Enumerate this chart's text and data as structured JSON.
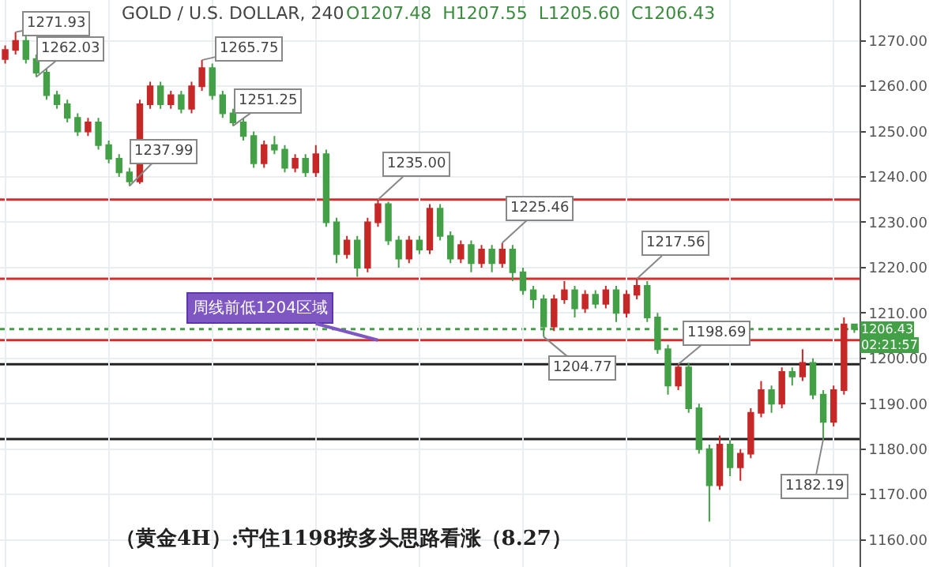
{
  "chart_data": {
    "type": "candlestick",
    "categories": [
      null,
      null,
      null,
      null,
      null,
      null,
      null,
      null,
      null,
      null,
      null,
      null,
      null,
      null,
      null,
      null,
      null,
      null,
      null,
      null,
      null,
      null,
      null,
      null,
      null,
      null,
      null,
      null,
      null,
      null,
      null,
      null,
      null,
      null,
      null,
      null,
      null,
      null,
      null,
      null,
      null,
      null,
      null,
      null,
      null,
      null,
      null,
      null,
      null,
      null,
      null,
      null,
      null,
      null,
      null,
      null,
      null,
      null,
      null,
      null,
      null,
      null,
      null,
      null,
      null,
      null,
      null,
      null,
      null,
      null,
      null,
      null,
      null,
      null,
      null,
      null,
      null,
      null,
      null,
      null,
      null,
      null,
      null
    ],
    "ohlc": [
      [
        1266,
        1269,
        1265,
        1268
      ],
      [
        1268,
        1271.93,
        1267,
        1270
      ],
      [
        1270,
        1271,
        1265,
        1266
      ],
      [
        1266,
        1267,
        1262.03,
        1263
      ],
      [
        1263,
        1264,
        1257,
        1258
      ],
      [
        1258,
        1259,
        1255,
        1256
      ],
      [
        1256,
        1257,
        1252,
        1253
      ],
      [
        1253,
        1254,
        1249,
        1250
      ],
      [
        1250,
        1253,
        1249,
        1252
      ],
      [
        1252,
        1253,
        1246,
        1247
      ],
      [
        1247,
        1248,
        1243,
        1244
      ],
      [
        1244,
        1245,
        1240,
        1241
      ],
      [
        1241,
        1242,
        1237.99,
        1239
      ],
      [
        1239,
        1257,
        1238.5,
        1256
      ],
      [
        1256,
        1261,
        1255,
        1260
      ],
      [
        1260,
        1261,
        1255,
        1256
      ],
      [
        1256,
        1259,
        1255,
        1258
      ],
      [
        1258,
        1259,
        1254,
        1255
      ],
      [
        1255,
        1261,
        1254,
        1260
      ],
      [
        1260,
        1265.75,
        1259,
        1264
      ],
      [
        1264,
        1265,
        1257,
        1258
      ],
      [
        1258,
        1259,
        1253,
        1254
      ],
      [
        1254,
        1255,
        1251.25,
        1252
      ],
      [
        1252,
        1253,
        1248,
        1249
      ],
      [
        1249,
        1250,
        1242,
        1243
      ],
      [
        1243,
        1248,
        1242,
        1247
      ],
      [
        1247,
        1249,
        1245,
        1246
      ],
      [
        1246,
        1247,
        1241,
        1242
      ],
      [
        1242,
        1245,
        1241,
        1244
      ],
      [
        1244,
        1245,
        1240,
        1241
      ],
      [
        1241,
        1247,
        1240,
        1245
      ],
      [
        1245,
        1246,
        1229,
        1230
      ],
      [
        1230,
        1231,
        1221,
        1223
      ],
      [
        1223,
        1227,
        1222,
        1226
      ],
      [
        1226,
        1227,
        1218,
        1220
      ],
      [
        1220,
        1231,
        1219,
        1230
      ],
      [
        1230,
        1235,
        1229,
        1234
      ],
      [
        1234,
        1234.5,
        1225,
        1226
      ],
      [
        1226,
        1227,
        1220,
        1222
      ],
      [
        1222,
        1227,
        1221,
        1226
      ],
      [
        1226,
        1227,
        1223,
        1224
      ],
      [
        1224,
        1234,
        1223,
        1233
      ],
      [
        1233,
        1234,
        1226,
        1227
      ],
      [
        1227,
        1228,
        1221,
        1222
      ],
      [
        1222,
        1226,
        1221,
        1225
      ],
      [
        1225,
        1226,
        1219,
        1221
      ],
      [
        1221,
        1225,
        1220,
        1224
      ],
      [
        1224,
        1225,
        1219,
        1221
      ],
      [
        1221,
        1225.46,
        1220,
        1224
      ],
      [
        1224,
        1225,
        1217,
        1219
      ],
      [
        1219,
        1220,
        1214,
        1215
      ],
      [
        1215,
        1216,
        1211,
        1213
      ],
      [
        1213,
        1214,
        1204.77,
        1207
      ],
      [
        1207,
        1214,
        1206,
        1213
      ],
      [
        1213,
        1217,
        1212,
        1215
      ],
      [
        1215,
        1216,
        1209,
        1211
      ],
      [
        1211,
        1215,
        1210,
        1214
      ],
      [
        1214,
        1215,
        1211,
        1212
      ],
      [
        1212,
        1216,
        1211,
        1215
      ],
      [
        1215,
        1216,
        1208,
        1210
      ],
      [
        1210,
        1215,
        1209,
        1214
      ],
      [
        1214,
        1217.56,
        1213,
        1216
      ],
      [
        1216,
        1217,
        1208,
        1209
      ],
      [
        1209,
        1210,
        1201,
        1202
      ],
      [
        1202,
        1203,
        1192,
        1194
      ],
      [
        1194,
        1198.69,
        1193,
        1198
      ],
      [
        1198,
        1199,
        1188,
        1189
      ],
      [
        1189,
        1190,
        1179,
        1180
      ],
      [
        1180,
        1181,
        1164,
        1172
      ],
      [
        1172,
        1183,
        1171,
        1181
      ],
      [
        1181,
        1182,
        1174,
        1176
      ],
      [
        1176,
        1180,
        1173,
        1179
      ],
      [
        1179,
        1189,
        1178,
        1188
      ],
      [
        1188,
        1195,
        1187,
        1193
      ],
      [
        1193,
        1194,
        1188,
        1190
      ],
      [
        1190,
        1198,
        1189,
        1197
      ],
      [
        1197,
        1198,
        1194,
        1196
      ],
      [
        1196,
        1202,
        1195,
        1199
      ],
      [
        1199,
        1200,
        1191,
        1192
      ],
      [
        1192,
        1193,
        1182.19,
        1186
      ],
      [
        1186,
        1194,
        1185,
        1193
      ],
      [
        1193,
        1209,
        1192,
        1207.48
      ],
      [
        1207.48,
        1207.55,
        1205.6,
        1206.43
      ]
    ],
    "colors": [
      "#c62828",
      "#c62828",
      "#43a047",
      "#43a047",
      "#43a047",
      "#43a047",
      "#43a047",
      "#43a047",
      "#c62828",
      "#43a047",
      "#43a047",
      "#43a047",
      "#43a047",
      "#c62828",
      "#c62828",
      "#43a047",
      "#c62828",
      "#43a047",
      "#c62828",
      "#c62828",
      "#43a047",
      "#43a047",
      "#43a047",
      "#43a047",
      "#43a047",
      "#c62828",
      "#43a047",
      "#43a047",
      "#c62828",
      "#43a047",
      "#c62828",
      "#43a047",
      "#43a047",
      "#c62828",
      "#43a047",
      "#c62828",
      "#c62828",
      "#43a047",
      "#43a047",
      "#c62828",
      "#43a047",
      "#c62828",
      "#43a047",
      "#43a047",
      "#c62828",
      "#43a047",
      "#c62828",
      "#43a047",
      "#c62828",
      "#43a047",
      "#43a047",
      "#43a047",
      "#43a047",
      "#c62828",
      "#c62828",
      "#43a047",
      "#c62828",
      "#43a047",
      "#c62828",
      "#43a047",
      "#c62828",
      "#c62828",
      "#43a047",
      "#43a047",
      "#43a047",
      "#c62828",
      "#43a047",
      "#43a047",
      "#43a047",
      "#c62828",
      "#43a047",
      "#c62828",
      "#c62828",
      "#c62828",
      "#43a047",
      "#c62828",
      "#43a047",
      "#c62828",
      "#43a047",
      "#43a047",
      "#c62828",
      "#c62828",
      "#43a047"
    ],
    "ylim": [
      1154,
      1279
    ],
    "yticks": [
      {
        "value": 1160,
        "label": "1160.00"
      },
      {
        "value": 1170,
        "label": "1170.00"
      },
      {
        "value": 1180,
        "label": "1180.00"
      },
      {
        "value": 1190,
        "label": "1190.00"
      },
      {
        "value": 1200,
        "label": "1200.00"
      },
      {
        "value": 1210,
        "label": "1210.00"
      },
      {
        "value": 1220,
        "label": "1220.00"
      },
      {
        "value": 1230,
        "label": "1230.00"
      },
      {
        "value": 1240,
        "label": "1240.00"
      },
      {
        "value": 1250,
        "label": "1250.00"
      },
      {
        "value": 1260,
        "label": "1260.00"
      },
      {
        "value": 1270,
        "label": "1270.00"
      }
    ],
    "tick_labels": "y",
    "grid": true,
    "ref_lines": [
      {
        "axis": "y",
        "value": 1204,
        "label": "周线前低1204区域",
        "color": "#d32f2f"
      },
      {
        "axis": "y",
        "value": 1217.56,
        "color": "#d32f2f"
      },
      {
        "axis": "y",
        "value": 1235,
        "color": "#d32f2f"
      },
      {
        "axis": "y",
        "value": 1198.69,
        "color": "#222222"
      },
      {
        "axis": "y",
        "value": 1182.19,
        "color": "#222222"
      },
      {
        "axis": "y",
        "value": 1206.43,
        "label": "1206.43",
        "color": "#43a047",
        "line_style": "dotted"
      }
    ],
    "annotations": [
      "GOLD / U.S. DOLLAR, 240",
      "O1207.48  H1207.55  L1205.60  C1206.43",
      "02:21:57",
      "（黄金4H）:守住1198按多头思路看涨（8.27）",
      "1271.93",
      "1262.03",
      "1265.75",
      "1251.25",
      "1237.99",
      "1235.00",
      "1225.46",
      "1217.56",
      "1204.77",
      "1198.69",
      "1182.19"
    ]
  }
}
